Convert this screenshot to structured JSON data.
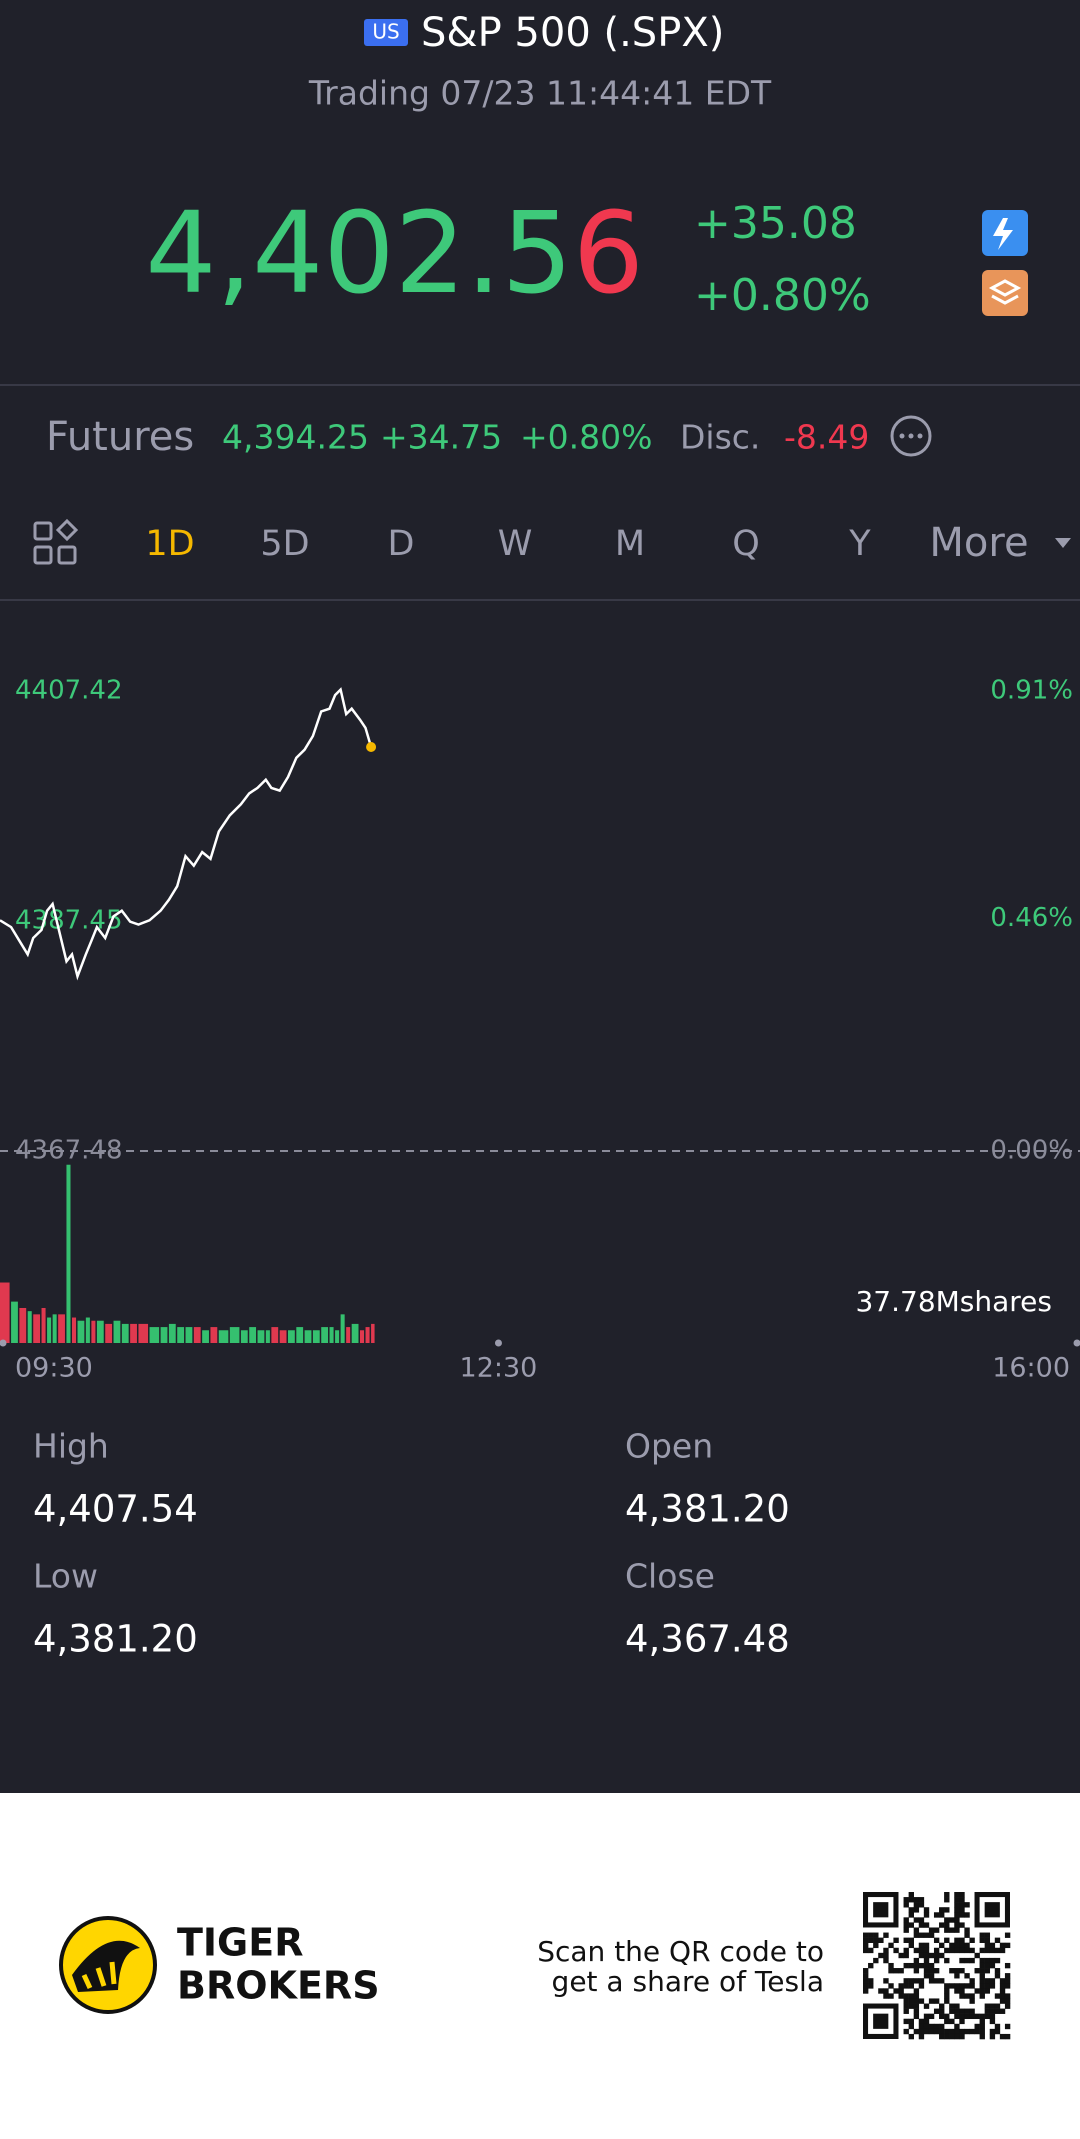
{
  "header": {
    "market_badge": "US",
    "title": "S&P 500 (.SPX)",
    "status": "Trading 07/23 11:44:41 EDT"
  },
  "quote": {
    "price_main": "4,402.5",
    "price_last_digit": "6",
    "change": "+35.08",
    "change_pct": "+0.80%"
  },
  "futures": {
    "label": "Futures",
    "price": "4,394.25",
    "change": "+34.75",
    "change_pct": "+0.80%",
    "disc_label": "Disc.",
    "disc": "-8.49"
  },
  "tabs": [
    "1D",
    "5D",
    "D",
    "W",
    "M",
    "Q",
    "Y",
    "More"
  ],
  "active_tab": 0,
  "chart_data": {
    "type": "line",
    "color": "#ffffff",
    "last_point_color": "#f5b800",
    "x": [
      "09:30",
      "09:34",
      "09:37",
      "09:40",
      "09:42",
      "09:45",
      "09:47",
      "09:49",
      "09:51",
      "09:54",
      "09:56",
      "09:58",
      "10:01",
      "10:03",
      "10:05",
      "10:08",
      "10:11",
      "10:14",
      "10:17",
      "10:20",
      "10:24",
      "10:28",
      "10:31",
      "10:34",
      "10:37",
      "10:40",
      "10:43",
      "10:46",
      "10:49",
      "10:53",
      "10:57",
      "11:00",
      "11:03",
      "11:06",
      "11:08",
      "11:11",
      "11:14",
      "11:17",
      "11:20",
      "11:23",
      "11:26",
      "11:29",
      "11:31",
      "11:33",
      "11:35",
      "11:37",
      "11:40",
      "11:42",
      "11:44"
    ],
    "values": [
      4387.51,
      4386.92,
      4385.73,
      4384.55,
      4385.97,
      4386.68,
      4388.34,
      4388.93,
      4386.92,
      4383.95,
      4384.55,
      4382.65,
      4384.55,
      4385.73,
      4386.92,
      4385.97,
      4387.86,
      4388.34,
      4387.39,
      4387.15,
      4387.51,
      4388.34,
      4389.29,
      4390.47,
      4393.08,
      4392.25,
      4393.43,
      4392.84,
      4395.21,
      4396.63,
      4397.58,
      4398.53,
      4399.01,
      4399.72,
      4399.01,
      4398.77,
      4399.95,
      4401.61,
      4402.32,
      4403.51,
      4405.64,
      4405.88,
      4407.06,
      4407.54,
      4405.41,
      4405.88,
      4404.93,
      4404.22,
      4402.56
    ],
    "xlim": [
      "09:30",
      "16:00"
    ],
    "xticks": [
      "09:30",
      "12:30",
      "16:00"
    ],
    "ylim": [
      4367.48,
      4407.42
    ],
    "yticks": [
      4367.48,
      4387.45,
      4407.42
    ],
    "y2lim": [
      0,
      0.91
    ],
    "y2ticks": [
      {
        "value": 0,
        "label": "0.00%"
      },
      {
        "value": 0.46,
        "label": "0.46%"
      },
      {
        "value": 0.91,
        "label": "0.91%"
      }
    ],
    "baseline_dashed": true,
    "volume_label": "37.78Mshares",
    "volume": [
      1.9,
      1.3,
      1.1,
      1.0,
      0.9,
      1.1,
      0.8,
      0.9,
      0.9,
      5.6,
      0.8,
      0.7,
      0.8,
      0.7,
      0.7,
      0.6,
      0.7,
      0.6,
      0.6,
      0.6,
      0.5,
      0.5,
      0.6,
      0.5,
      0.5,
      0.5,
      0.4,
      0.5,
      0.4,
      0.5,
      0.4,
      0.5,
      0.4,
      0.4,
      0.5,
      0.4,
      0.4,
      0.5,
      0.4,
      0.4,
      0.5,
      0.5,
      0.4,
      0.9,
      0.5,
      0.6,
      0.4,
      0.5,
      0.6
    ],
    "volume_lim": [
      0,
      6
    ],
    "volume_colors": [
      "#e0394f",
      "#35c06f",
      "#e0394f",
      "#35c06f",
      "#e0394f",
      "#e0394f",
      "#35c06f",
      "#35c06f",
      "#e0394f",
      "#35c06f",
      "#e0394f",
      "#35c06f",
      "#35c06f",
      "#e0394f",
      "#35c06f",
      "#e0394f",
      "#35c06f",
      "#35c06f",
      "#e0394f",
      "#e0394f",
      "#35c06f",
      "#35c06f",
      "#35c06f",
      "#35c06f",
      "#35c06f",
      "#e0394f",
      "#35c06f",
      "#e0394f",
      "#35c06f",
      "#35c06f",
      "#35c06f",
      "#35c06f",
      "#35c06f",
      "#35c06f",
      "#e0394f",
      "#e0394f",
      "#35c06f",
      "#35c06f",
      "#35c06f",
      "#35c06f",
      "#35c06f",
      "#35c06f",
      "#35c06f",
      "#35c06f",
      "#e0394f",
      "#35c06f",
      "#e0394f",
      "#e0394f",
      "#e0394f"
    ]
  },
  "stats": [
    {
      "label": "High",
      "value": "4,407.54"
    },
    {
      "label": "Open",
      "value": "4,381.20"
    },
    {
      "label": "Low",
      "value": "4,381.20"
    },
    {
      "label": "Close",
      "value": "4,367.48"
    }
  ],
  "footer": {
    "brand_line1": "TIGER",
    "brand_line2": "BROKERS",
    "promo_line1": "Scan the QR code to",
    "promo_line2": "get a share of Tesla"
  }
}
